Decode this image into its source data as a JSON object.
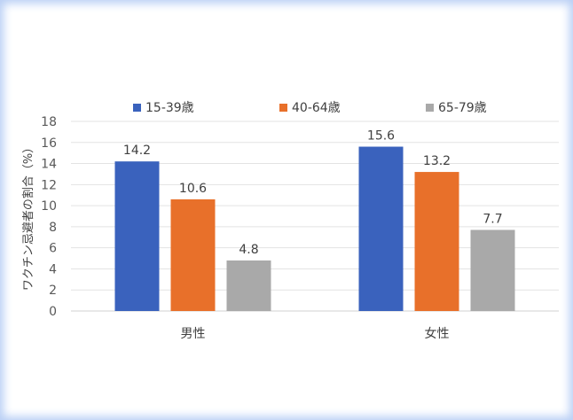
{
  "chart_data": {
    "type": "bar",
    "ylabel": "ワクチン忌避者の割合（%）",
    "xlabel": "",
    "categories": [
      "男性",
      "女性"
    ],
    "series": [
      {
        "name": "15-39歳",
        "color": "#3a62bd",
        "values": [
          14.2,
          15.6
        ]
      },
      {
        "name": "40-64歳",
        "color": "#e8702a",
        "values": [
          10.6,
          13.2
        ]
      },
      {
        "name": "65-79歳",
        "color": "#a9a9a9",
        "values": [
          4.8,
          7.7
        ]
      }
    ],
    "ylim": [
      0,
      18
    ],
    "yticks": [
      0,
      2,
      4,
      6,
      8,
      10,
      12,
      14,
      16,
      18
    ],
    "grid": true,
    "legend_position": "top"
  }
}
